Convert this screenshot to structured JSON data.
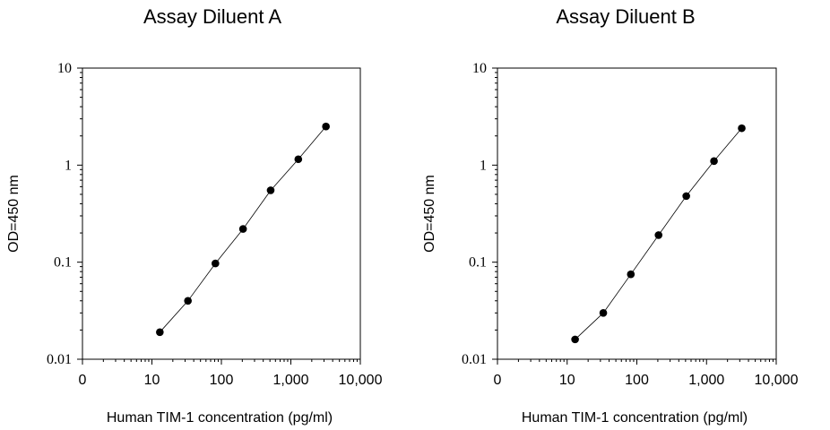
{
  "chart_data": [
    {
      "type": "scatter",
      "title": "Assay Diluent  A",
      "xlabel": "Human TIM-1 concentration (pg/ml)",
      "ylabel": "OD=450 nm",
      "xscale": "log",
      "yscale": "log",
      "xlim": [
        1,
        10000
      ],
      "ylim": [
        0.01,
        10
      ],
      "xtick_labels": [
        "0",
        "10",
        "100",
        "1,000",
        "10,000"
      ],
      "ytick_labels": [
        "0.01",
        "0.1",
        "1",
        "10"
      ],
      "grid": false,
      "fit_line": true,
      "series": [
        {
          "x": [
            13,
            33,
            82,
            205,
            512,
            1280,
            3200
          ],
          "y": [
            0.019,
            0.04,
            0.097,
            0.22,
            0.55,
            1.15,
            2.5
          ]
        }
      ]
    },
    {
      "type": "scatter",
      "title": "Assay Diluent  B",
      "xlabel": "Human TIM-1 concentration (pg/ml)",
      "ylabel": "OD=450 nm",
      "xscale": "log",
      "yscale": "log",
      "xlim": [
        1,
        10000
      ],
      "ylim": [
        0.01,
        10
      ],
      "xtick_labels": [
        "0",
        "10",
        "100",
        "1,000",
        "10,000"
      ],
      "ytick_labels": [
        "0.01",
        "0.1",
        "1",
        "10"
      ],
      "grid": false,
      "fit_line": true,
      "series": [
        {
          "x": [
            13,
            33,
            82,
            205,
            512,
            1280,
            3200
          ],
          "y": [
            0.016,
            0.03,
            0.075,
            0.19,
            0.48,
            1.1,
            2.4
          ]
        }
      ]
    }
  ]
}
